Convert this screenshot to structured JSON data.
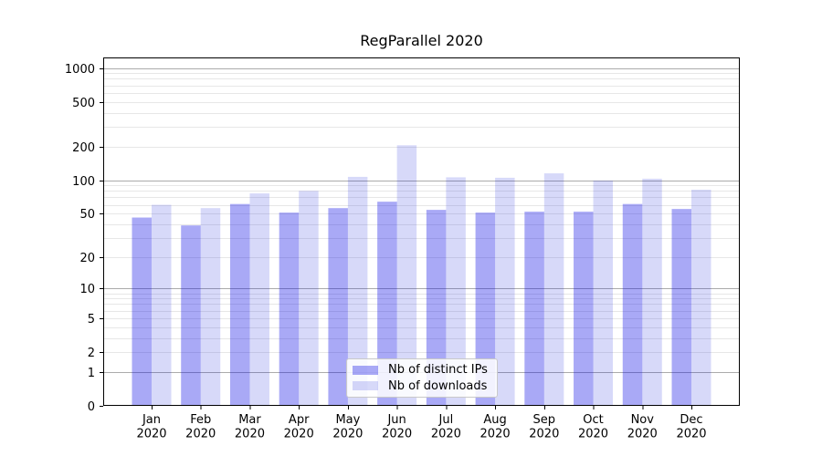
{
  "chart_data": {
    "type": "bar",
    "title": "RegParallel 2020",
    "categories": [
      "Jan 2020",
      "Feb 2020",
      "Mar 2020",
      "Apr 2020",
      "May 2020",
      "Jun 2020",
      "Jul 2020",
      "Aug 2020",
      "Sep 2020",
      "Oct 2020",
      "Nov 2020",
      "Dec 2020"
    ],
    "series": [
      {
        "name": "Nb of distinct IPs",
        "color": "rgba(8,8,230,0.35)",
        "values": [
          46,
          39,
          61,
          51,
          56,
          64,
          54,
          51,
          52,
          52,
          61,
          55
        ]
      },
      {
        "name": "Nb of downloads",
        "color": "rgba(8,18,220,0.16)",
        "values": [
          60,
          56,
          76,
          80,
          107,
          205,
          106,
          105,
          115,
          99,
          103,
          82
        ]
      }
    ],
    "xlabel": "",
    "ylabel": "",
    "yscale": "log1p",
    "y_ticks": [
      0,
      1,
      2,
      5,
      10,
      20,
      50,
      100,
      200,
      500,
      1000
    ],
    "y_tick_labels": [
      "0",
      "1",
      "2",
      "5",
      "10",
      "20",
      "50",
      "100",
      "200",
      "500",
      "1000"
    ],
    "grid_major_values": [
      1,
      10,
      100,
      1000
    ],
    "ylim": [
      0,
      1240
    ],
    "grid": "both",
    "legend_position": "lower-center",
    "colors": {
      "major_grid": "#ababab",
      "minor_grid": "#e7e7e7",
      "axis": "#000000",
      "text": "#000000"
    }
  }
}
